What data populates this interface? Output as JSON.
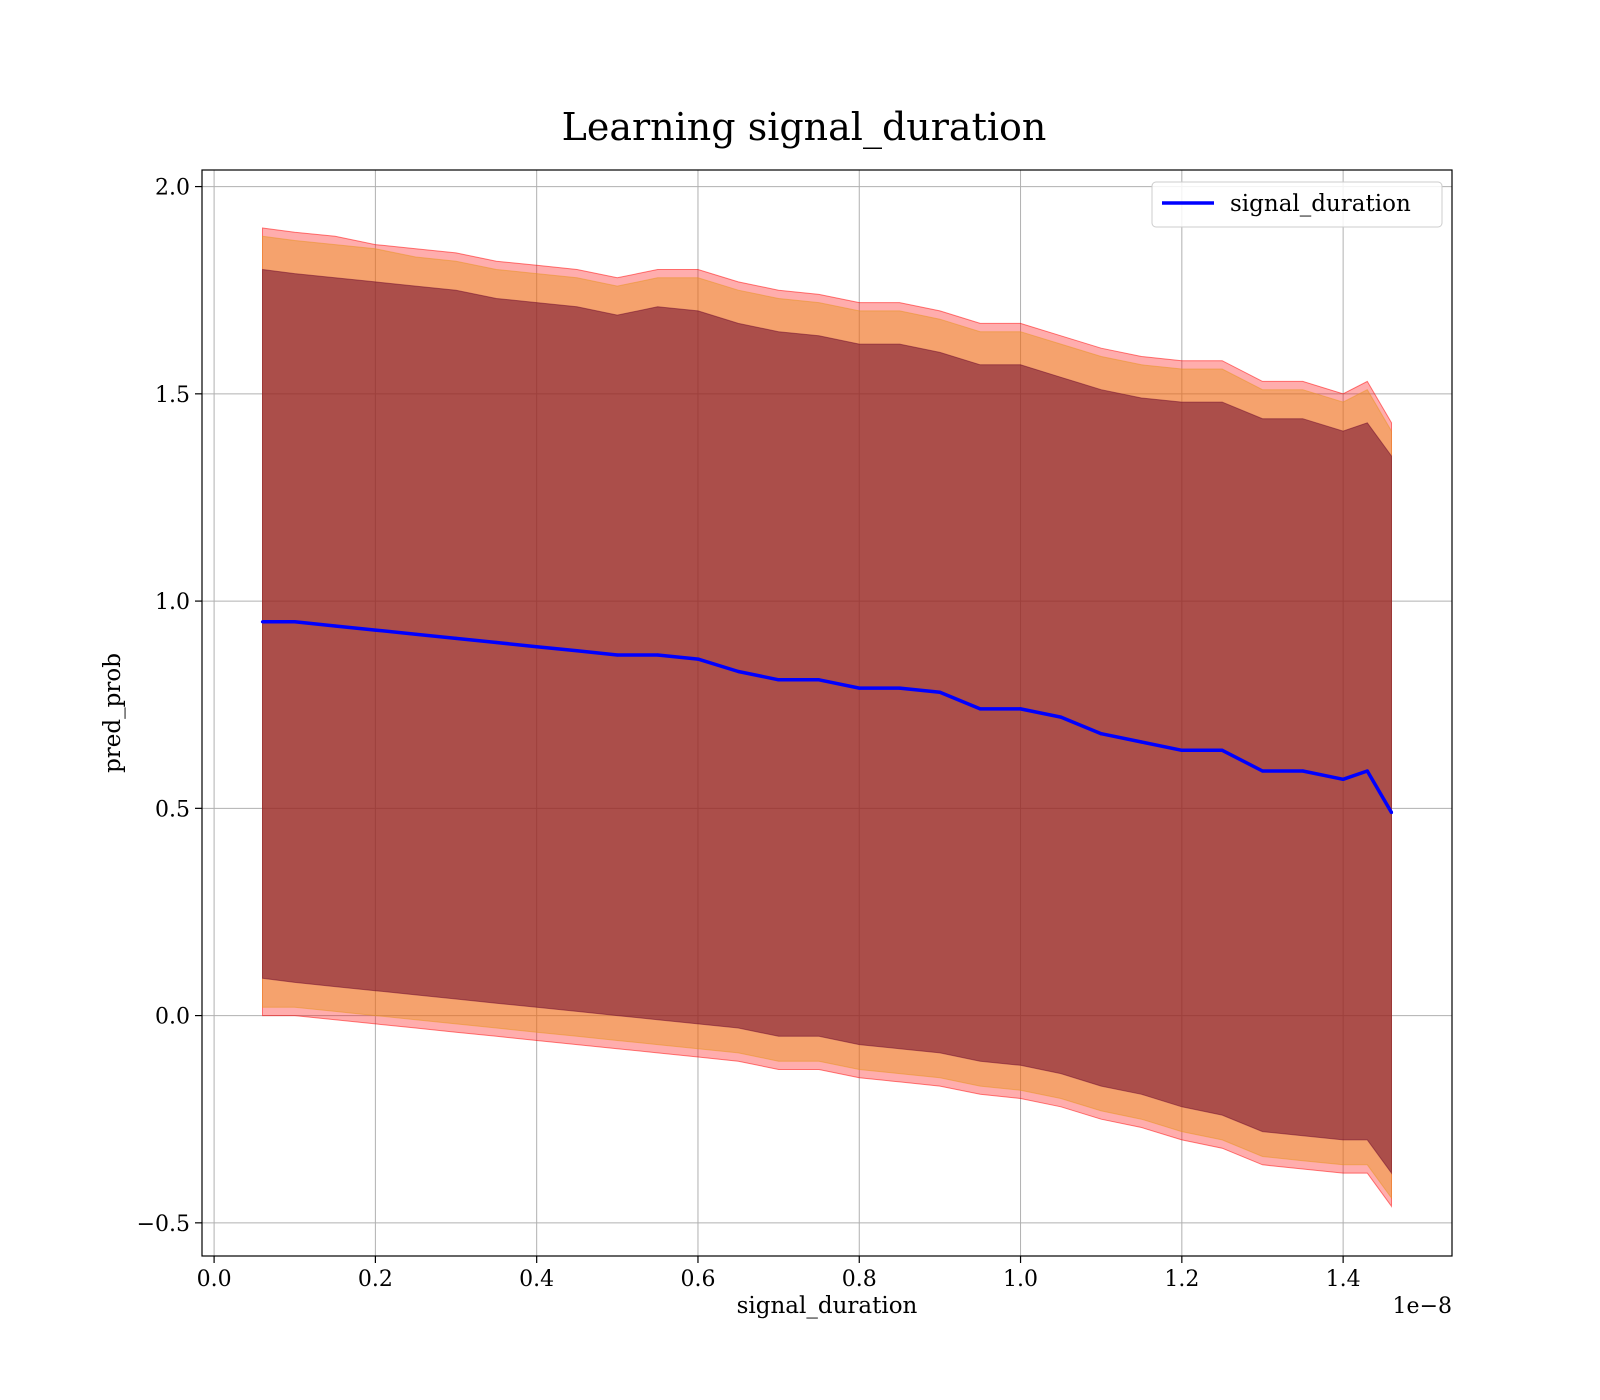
{
  "chart_data": {
    "type": "line",
    "title": "Learning signal_duration",
    "xlabel": "signal_duration",
    "ylabel": "pred_prob",
    "x_offset_text": "1e−8",
    "xlim": [
      -0.015,
      1.535
    ],
    "ylim": [
      -0.58,
      2.04
    ],
    "xticks": [
      0.0,
      0.2,
      0.4,
      0.6,
      0.8,
      1.0,
      1.2,
      1.4
    ],
    "xtick_labels": [
      "0.0",
      "0.2",
      "0.4",
      "0.6",
      "0.8",
      "1.0",
      "1.2",
      "1.4"
    ],
    "yticks": [
      -0.5,
      0.0,
      0.5,
      1.0,
      1.5,
      2.0
    ],
    "ytick_labels": [
      "−0.5",
      "0.0",
      "0.5",
      "1.0",
      "1.5",
      "2.0"
    ],
    "grid": true,
    "legend_position": "top-right",
    "colors": {
      "line": "#0000ff",
      "outer_band": "#ff0000",
      "middle_band": "#e8941f",
      "inner_band": "#6e0a2e"
    },
    "x": [
      0.06,
      0.1,
      0.15,
      0.2,
      0.25,
      0.3,
      0.35,
      0.4,
      0.45,
      0.5,
      0.55,
      0.6,
      0.65,
      0.7,
      0.75,
      0.8,
      0.85,
      0.9,
      0.95,
      1.0,
      1.05,
      1.1,
      1.15,
      1.2,
      1.25,
      1.3,
      1.35,
      1.4,
      1.43,
      1.46
    ],
    "series": [
      {
        "name": "signal_duration",
        "values": [
          0.95,
          0.95,
          0.94,
          0.93,
          0.92,
          0.91,
          0.9,
          0.89,
          0.88,
          0.87,
          0.87,
          0.86,
          0.83,
          0.81,
          0.81,
          0.79,
          0.79,
          0.78,
          0.74,
          0.74,
          0.72,
          0.68,
          0.66,
          0.64,
          0.64,
          0.59,
          0.59,
          0.57,
          0.59,
          0.49
        ]
      }
    ],
    "bands": [
      {
        "upper": [
          1.9,
          1.89,
          1.88,
          1.86,
          1.85,
          1.84,
          1.82,
          1.81,
          1.8,
          1.78,
          1.8,
          1.8,
          1.77,
          1.75,
          1.74,
          1.72,
          1.72,
          1.7,
          1.67,
          1.67,
          1.64,
          1.61,
          1.59,
          1.58,
          1.58,
          1.53,
          1.53,
          1.5,
          1.53,
          1.43
        ],
        "lower": [
          0.0,
          0.0,
          -0.01,
          -0.02,
          -0.03,
          -0.04,
          -0.05,
          -0.06,
          -0.07,
          -0.08,
          -0.09,
          -0.1,
          -0.11,
          -0.13,
          -0.13,
          -0.15,
          -0.16,
          -0.17,
          -0.19,
          -0.2,
          -0.22,
          -0.25,
          -0.27,
          -0.3,
          -0.32,
          -0.36,
          -0.37,
          -0.38,
          -0.38,
          -0.46
        ]
      },
      {
        "upper": [
          1.88,
          1.87,
          1.86,
          1.85,
          1.83,
          1.82,
          1.8,
          1.79,
          1.78,
          1.76,
          1.78,
          1.78,
          1.75,
          1.73,
          1.72,
          1.7,
          1.7,
          1.68,
          1.65,
          1.65,
          1.62,
          1.59,
          1.57,
          1.56,
          1.56,
          1.51,
          1.51,
          1.48,
          1.51,
          1.41
        ],
        "lower": [
          0.02,
          0.02,
          0.01,
          0.0,
          -0.01,
          -0.02,
          -0.03,
          -0.04,
          -0.05,
          -0.06,
          -0.07,
          -0.08,
          -0.09,
          -0.11,
          -0.11,
          -0.13,
          -0.14,
          -0.15,
          -0.17,
          -0.18,
          -0.2,
          -0.23,
          -0.25,
          -0.28,
          -0.3,
          -0.34,
          -0.35,
          -0.36,
          -0.36,
          -0.44
        ]
      },
      {
        "upper": [
          1.8,
          1.79,
          1.78,
          1.77,
          1.76,
          1.75,
          1.73,
          1.72,
          1.71,
          1.69,
          1.71,
          1.7,
          1.67,
          1.65,
          1.64,
          1.62,
          1.62,
          1.6,
          1.57,
          1.57,
          1.54,
          1.51,
          1.49,
          1.48,
          1.48,
          1.44,
          1.44,
          1.41,
          1.43,
          1.35
        ],
        "lower": [
          0.09,
          0.08,
          0.07,
          0.06,
          0.05,
          0.04,
          0.03,
          0.02,
          0.01,
          0.0,
          -0.01,
          -0.02,
          -0.03,
          -0.05,
          -0.05,
          -0.07,
          -0.08,
          -0.09,
          -0.11,
          -0.12,
          -0.14,
          -0.17,
          -0.19,
          -0.22,
          -0.24,
          -0.28,
          -0.29,
          -0.3,
          -0.3,
          -0.38
        ]
      }
    ]
  }
}
